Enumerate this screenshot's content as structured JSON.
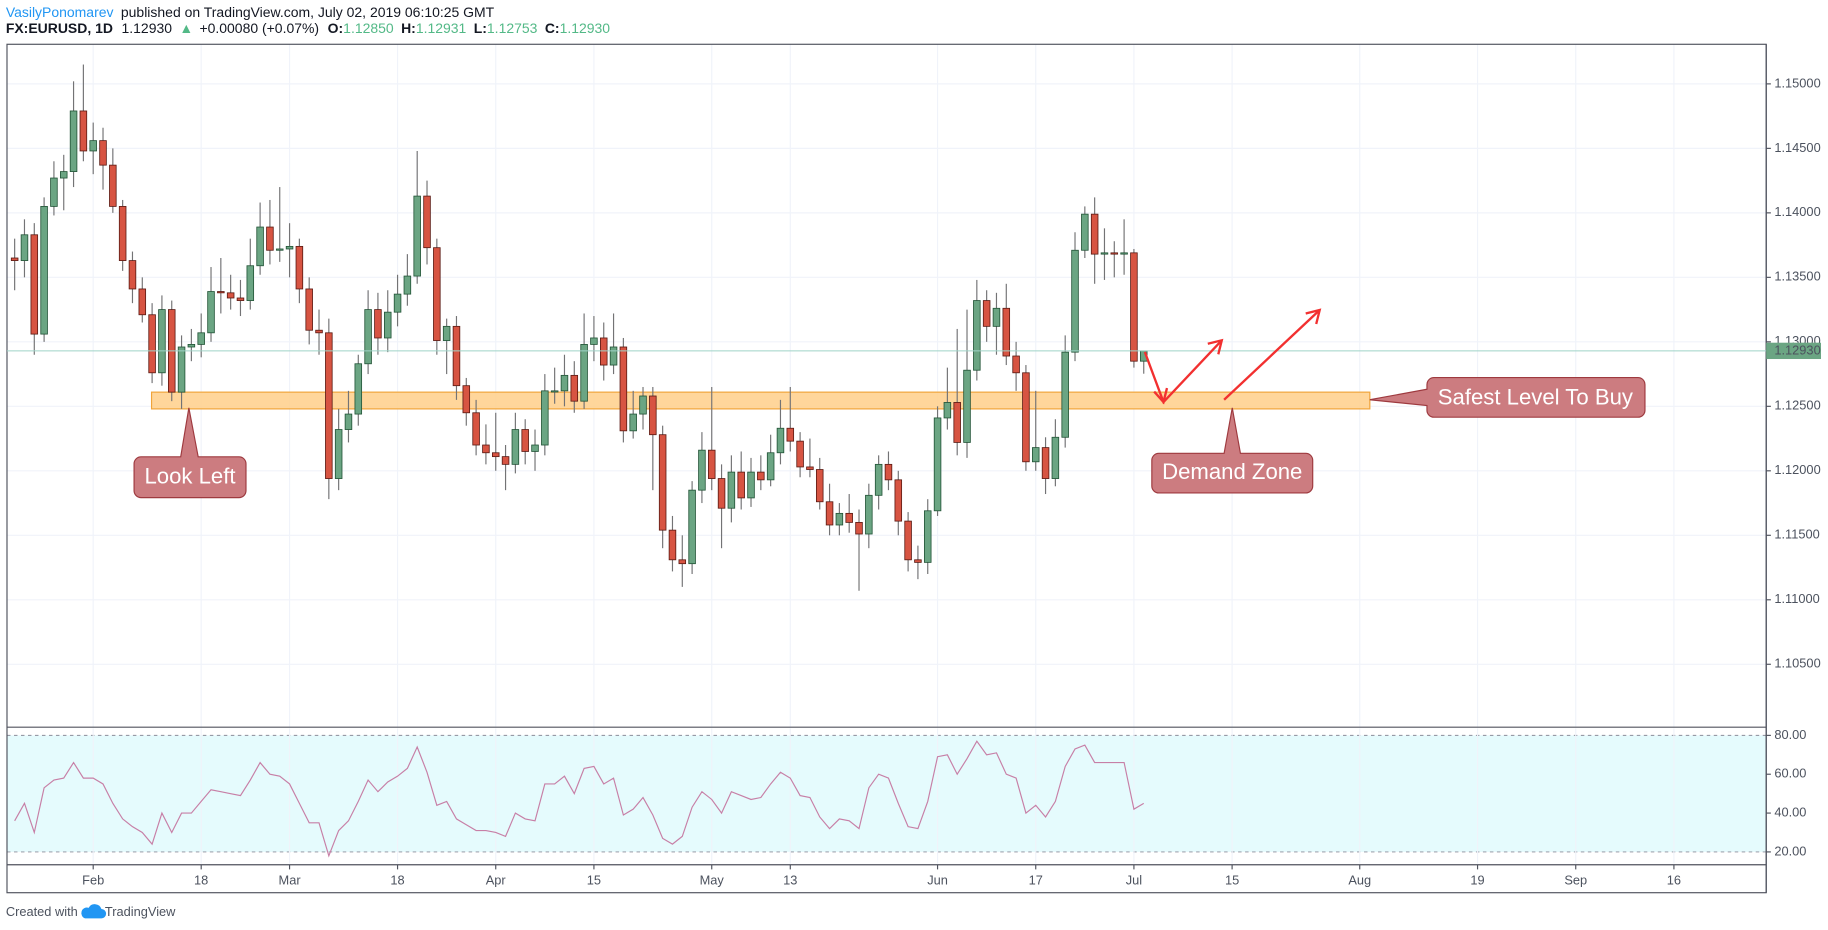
{
  "header": {
    "author": "VasilyPonomarev",
    "published": "published on TradingView.com, July 02, 2019 06:10:25 GMT",
    "symbol": "FX:EURUSD, 1D",
    "price": "1.12930",
    "change_arrow": "▲",
    "change": "+0.00080 (+0.07%)",
    "ohlc": [
      {
        "label": "O:",
        "value": "1.12850"
      },
      {
        "label": "H:",
        "value": "1.12931"
      },
      {
        "label": "L:",
        "value": "1.12753"
      },
      {
        "label": "C:",
        "value": "1.12930"
      }
    ]
  },
  "footer": {
    "created": "Created with",
    "brand": "TradingView"
  },
  "chart_data": {
    "type": "candlestick",
    "up_color": "#6ba583",
    "down_color": "#d75442",
    "grid": true,
    "xlim": [
      -0.78,
      178.4
    ],
    "xticks": [
      {
        "value": 8,
        "label": "Feb"
      },
      {
        "value": 19,
        "label": "18"
      },
      {
        "value": 28,
        "label": "Mar"
      },
      {
        "value": 39,
        "label": "18"
      },
      {
        "value": 49,
        "label": "Apr"
      },
      {
        "value": 59,
        "label": "15"
      },
      {
        "value": 71,
        "label": "May"
      },
      {
        "value": 79,
        "label": "13"
      },
      {
        "value": 94,
        "label": "Jun"
      },
      {
        "value": 104,
        "label": "17"
      },
      {
        "value": 114,
        "label": "Jul"
      },
      {
        "value": 124,
        "label": "15"
      },
      {
        "value": 137,
        "label": "Aug"
      },
      {
        "value": 149,
        "label": "19"
      },
      {
        "value": 159,
        "label": "Sep"
      },
      {
        "value": 169,
        "label": "16"
      }
    ],
    "ylim": [
      1.10012,
      1.15307
    ],
    "yticks": [
      {
        "value": 1.105,
        "label": "1.10500"
      },
      {
        "value": 1.11,
        "label": "1.11000"
      },
      {
        "value": 1.115,
        "label": "1.11500"
      },
      {
        "value": 1.12,
        "label": "1.12000"
      },
      {
        "value": 1.125,
        "label": "1.12500"
      },
      {
        "value": 1.13,
        "label": "1.13000"
      },
      {
        "value": 1.135,
        "label": "1.13500"
      },
      {
        "value": 1.14,
        "label": "1.14000"
      },
      {
        "value": 1.145,
        "label": "1.14500"
      },
      {
        "value": 1.15,
        "label": "1.15000"
      }
    ],
    "x": [
      0,
      1,
      2,
      3,
      4,
      5,
      6,
      7,
      8,
      9,
      10,
      11,
      12,
      13,
      14,
      15,
      16,
      17,
      18,
      19,
      20,
      21,
      22,
      23,
      24,
      25,
      26,
      27,
      28,
      29,
      30,
      31,
      32,
      33,
      34,
      35,
      36,
      37,
      38,
      39,
      40,
      41,
      42,
      43,
      44,
      45,
      46,
      47,
      48,
      49,
      50,
      51,
      52,
      53,
      54,
      55,
      56,
      57,
      58,
      59,
      60,
      61,
      62,
      63,
      64,
      65,
      66,
      67,
      68,
      69,
      70,
      71,
      72,
      73,
      74,
      75,
      76,
      77,
      78,
      79,
      80,
      81,
      82,
      83,
      84,
      85,
      86,
      87,
      88,
      89,
      90,
      91,
      92,
      93,
      94,
      95,
      96,
      97,
      98,
      99,
      100,
      101,
      102,
      103,
      104,
      105,
      106,
      107,
      108,
      109,
      110,
      111,
      112,
      113,
      114,
      115
    ],
    "ohlc": [
      [
        1.1365,
        1.138,
        1.134,
        1.1363
      ],
      [
        1.1363,
        1.1395,
        1.135,
        1.1383
      ],
      [
        1.1383,
        1.1392,
        1.129,
        1.1306
      ],
      [
        1.1306,
        1.1412,
        1.13,
        1.1405
      ],
      [
        1.1405,
        1.144,
        1.1398,
        1.1427
      ],
      [
        1.1427,
        1.1445,
        1.1402,
        1.1432
      ],
      [
        1.1432,
        1.1502,
        1.142,
        1.1479
      ],
      [
        1.1479,
        1.1515,
        1.144,
        1.1448
      ],
      [
        1.1448,
        1.147,
        1.143,
        1.1456
      ],
      [
        1.1456,
        1.1466,
        1.1418,
        1.1437
      ],
      [
        1.1437,
        1.145,
        1.14,
        1.1405
      ],
      [
        1.1405,
        1.141,
        1.1355,
        1.1363
      ],
      [
        1.1363,
        1.137,
        1.133,
        1.1341
      ],
      [
        1.1341,
        1.135,
        1.1315,
        1.1321
      ],
      [
        1.1321,
        1.133,
        1.1268,
        1.1276
      ],
      [
        1.1276,
        1.1336,
        1.1266,
        1.1325
      ],
      [
        1.1325,
        1.1332,
        1.1254,
        1.1261
      ],
      [
        1.1261,
        1.1305,
        1.1248,
        1.1296
      ],
      [
        1.1296,
        1.131,
        1.1285,
        1.1298
      ],
      [
        1.1298,
        1.1322,
        1.1288,
        1.1307
      ],
      [
        1.1307,
        1.1358,
        1.13,
        1.1339
      ],
      [
        1.1339,
        1.1365,
        1.1322,
        1.1338
      ],
      [
        1.1338,
        1.1352,
        1.1325,
        1.1334
      ],
      [
        1.1334,
        1.1348,
        1.132,
        1.1332
      ],
      [
        1.1332,
        1.138,
        1.1325,
        1.1359
      ],
      [
        1.1359,
        1.1408,
        1.1352,
        1.1389
      ],
      [
        1.1389,
        1.141,
        1.136,
        1.1371
      ],
      [
        1.1371,
        1.142,
        1.1362,
        1.1372
      ],
      [
        1.1372,
        1.1392,
        1.135,
        1.1374
      ],
      [
        1.1374,
        1.138,
        1.133,
        1.1341
      ],
      [
        1.1341,
        1.135,
        1.1298,
        1.1309
      ],
      [
        1.1309,
        1.1325,
        1.129,
        1.1307
      ],
      [
        1.1307,
        1.1318,
        1.1178,
        1.1194
      ],
      [
        1.1194,
        1.1248,
        1.1185,
        1.1232
      ],
      [
        1.1232,
        1.1262,
        1.1222,
        1.1244
      ],
      [
        1.1244,
        1.129,
        1.1235,
        1.1283
      ],
      [
        1.1283,
        1.134,
        1.1275,
        1.1325
      ],
      [
        1.1325,
        1.1338,
        1.129,
        1.1303
      ],
      [
        1.1303,
        1.134,
        1.1292,
        1.1323
      ],
      [
        1.1323,
        1.1352,
        1.1312,
        1.1337
      ],
      [
        1.1337,
        1.1368,
        1.1328,
        1.1351
      ],
      [
        1.1351,
        1.1448,
        1.1345,
        1.1413
      ],
      [
        1.1413,
        1.1425,
        1.136,
        1.1373
      ],
      [
        1.1373,
        1.138,
        1.129,
        1.1301
      ],
      [
        1.1301,
        1.1318,
        1.1275,
        1.1312
      ],
      [
        1.1312,
        1.132,
        1.1255,
        1.1266
      ],
      [
        1.1266,
        1.1272,
        1.1235,
        1.1245
      ],
      [
        1.1245,
        1.1255,
        1.1212,
        1.122
      ],
      [
        1.122,
        1.1236,
        1.1205,
        1.1214
      ],
      [
        1.1214,
        1.1245,
        1.12,
        1.1211
      ],
      [
        1.1211,
        1.122,
        1.1185,
        1.1205
      ],
      [
        1.1205,
        1.1245,
        1.1198,
        1.1232
      ],
      [
        1.1232,
        1.124,
        1.1205,
        1.1215
      ],
      [
        1.1215,
        1.1232,
        1.12,
        1.122
      ],
      [
        1.122,
        1.1275,
        1.1212,
        1.1262
      ],
      [
        1.1262,
        1.128,
        1.1252,
        1.1262
      ],
      [
        1.1262,
        1.129,
        1.125,
        1.1274
      ],
      [
        1.1274,
        1.1285,
        1.1245,
        1.1254
      ],
      [
        1.1254,
        1.1322,
        1.1248,
        1.1298
      ],
      [
        1.1298,
        1.132,
        1.1285,
        1.1303
      ],
      [
        1.1303,
        1.1315,
        1.127,
        1.1282
      ],
      [
        1.1282,
        1.1322,
        1.1275,
        1.1296
      ],
      [
        1.1296,
        1.1303,
        1.1222,
        1.1231
      ],
      [
        1.1231,
        1.1262,
        1.1225,
        1.1244
      ],
      [
        1.1244,
        1.1265,
        1.1232,
        1.1258
      ],
      [
        1.1258,
        1.1265,
        1.1185,
        1.1228
      ],
      [
        1.1228,
        1.1235,
        1.114,
        1.1154
      ],
      [
        1.1154,
        1.1165,
        1.1122,
        1.1131
      ],
      [
        1.1131,
        1.115,
        1.111,
        1.1128
      ],
      [
        1.1128,
        1.1192,
        1.112,
        1.1185
      ],
      [
        1.1185,
        1.123,
        1.1175,
        1.1216
      ],
      [
        1.1216,
        1.1265,
        1.1185,
        1.1194
      ],
      [
        1.1194,
        1.1205,
        1.114,
        1.1171
      ],
      [
        1.1171,
        1.1212,
        1.116,
        1.1199
      ],
      [
        1.1199,
        1.1215,
        1.117,
        1.1179
      ],
      [
        1.1179,
        1.121,
        1.1172,
        1.1199
      ],
      [
        1.1199,
        1.1212,
        1.1185,
        1.1193
      ],
      [
        1.1193,
        1.1228,
        1.1188,
        1.1214
      ],
      [
        1.1214,
        1.1255,
        1.1205,
        1.1233
      ],
      [
        1.1233,
        1.1265,
        1.1215,
        1.1223
      ],
      [
        1.1223,
        1.123,
        1.1195,
        1.1203
      ],
      [
        1.1203,
        1.1225,
        1.1195,
        1.1201
      ],
      [
        1.1201,
        1.121,
        1.117,
        1.1176
      ],
      [
        1.1176,
        1.119,
        1.115,
        1.1158
      ],
      [
        1.1158,
        1.1175,
        1.115,
        1.1167
      ],
      [
        1.1167,
        1.1182,
        1.1152,
        1.116
      ],
      [
        1.116,
        1.117,
        1.1107,
        1.1151
      ],
      [
        1.1151,
        1.119,
        1.114,
        1.1181
      ],
      [
        1.1181,
        1.1212,
        1.117,
        1.1205
      ],
      [
        1.1205,
        1.1215,
        1.1185,
        1.1193
      ],
      [
        1.1193,
        1.12,
        1.115,
        1.1161
      ],
      [
        1.1161,
        1.1168,
        1.1122,
        1.1131
      ],
      [
        1.1131,
        1.1142,
        1.1116,
        1.1129
      ],
      [
        1.1129,
        1.1178,
        1.112,
        1.1169
      ],
      [
        1.1169,
        1.125,
        1.1165,
        1.1241
      ],
      [
        1.1241,
        1.128,
        1.1232,
        1.1253
      ],
      [
        1.1253,
        1.131,
        1.1212,
        1.1222
      ],
      [
        1.1222,
        1.1325,
        1.121,
        1.1278
      ],
      [
        1.1278,
        1.1348,
        1.127,
        1.1332
      ],
      [
        1.1332,
        1.134,
        1.13,
        1.1312
      ],
      [
        1.1312,
        1.1338,
        1.129,
        1.1326
      ],
      [
        1.1326,
        1.1345,
        1.1282,
        1.1289
      ],
      [
        1.1289,
        1.13,
        1.1262,
        1.1276
      ],
      [
        1.1276,
        1.1282,
        1.12,
        1.1207
      ],
      [
        1.1207,
        1.1262,
        1.12,
        1.1218
      ],
      [
        1.1218,
        1.1226,
        1.1182,
        1.1194
      ],
      [
        1.1194,
        1.124,
        1.1188,
        1.1226
      ],
      [
        1.1226,
        1.1305,
        1.1218,
        1.1292
      ],
      [
        1.1292,
        1.1385,
        1.1285,
        1.1371
      ],
      [
        1.1371,
        1.1405,
        1.1365,
        1.1399
      ],
      [
        1.1399,
        1.1412,
        1.1345,
        1.1368
      ],
      [
        1.1368,
        1.1388,
        1.1348,
        1.1369
      ],
      [
        1.1369,
        1.1378,
        1.135,
        1.1368
      ],
      [
        1.1368,
        1.1395,
        1.1352,
        1.1369
      ],
      [
        1.1369,
        1.1372,
        1.128,
        1.1285
      ],
      [
        1.1285,
        1.12931,
        1.12753,
        1.1293
      ]
    ],
    "zone": {
      "low": 1.1248,
      "high": 1.1261
    },
    "annotations": [
      "Look Left",
      "Demand Zone",
      "Safest Level To Buy"
    ],
    "indicator": {
      "type": "line",
      "color": "#c77fa6",
      "ylim": [
        14,
        83.6
      ],
      "band": [
        20,
        80
      ],
      "yticks": [
        {
          "value": 20,
          "label": "20.00"
        },
        {
          "value": 40,
          "label": "40.00"
        },
        {
          "value": 60,
          "label": "60.00"
        },
        {
          "value": 80,
          "label": "80.00"
        }
      ],
      "values": [
        36,
        45,
        30,
        53,
        57,
        58,
        66,
        58,
        58,
        55,
        45,
        37,
        33,
        30,
        24,
        40,
        30,
        40,
        40,
        46,
        52,
        51,
        50,
        49,
        57,
        66,
        60,
        59,
        55,
        45,
        35,
        35,
        18,
        31,
        36,
        46,
        57,
        51,
        56,
        59,
        63,
        74,
        61,
        44,
        46,
        37,
        34,
        31,
        31,
        30,
        28,
        40,
        37,
        36,
        55,
        55,
        59,
        50,
        63,
        64,
        55,
        58,
        39,
        42,
        48,
        39,
        27,
        24,
        28,
        43,
        51,
        47,
        40,
        51,
        49,
        47,
        48,
        55,
        61,
        58,
        49,
        48,
        38,
        32,
        37,
        36,
        32,
        53,
        60,
        58,
        45,
        33,
        32,
        46,
        69,
        70,
        60,
        68,
        77,
        70,
        71,
        60,
        58,
        40,
        44,
        38,
        46,
        64,
        73,
        75,
        66,
        66,
        66,
        66,
        42,
        45
      ]
    }
  }
}
